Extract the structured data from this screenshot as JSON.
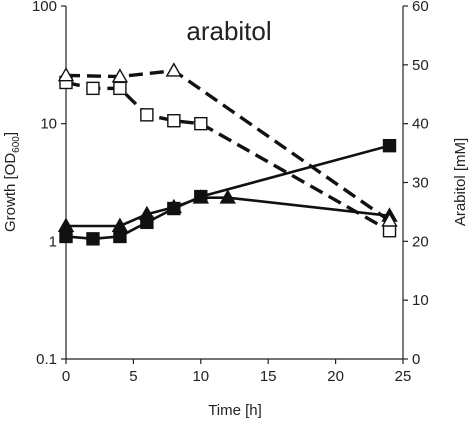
{
  "chart_data": {
    "type": "line",
    "title": "arabitol",
    "xlabel": "Time [h]",
    "ylabel_left": "Growth [OD600]",
    "ylabel_left_main": "Growth [OD",
    "ylabel_left_sub": "600",
    "ylabel_left_close": "]",
    "ylabel_right": "Arabitol [mM]",
    "xlim": [
      0,
      25
    ],
    "x_ticks": [
      "0",
      "5",
      "10",
      "15",
      "20",
      "25"
    ],
    "y_left_scale": "log",
    "y_left_lim": [
      0.1,
      100
    ],
    "y_left_ticks": [
      "0.1",
      "1",
      "10",
      "100"
    ],
    "y_right_lim": [
      0,
      60
    ],
    "y_right_ticks": [
      "0",
      "10",
      "20",
      "30",
      "40",
      "50",
      "60"
    ],
    "grid": false,
    "legend": "none",
    "series": [
      {
        "marker": "filled-square",
        "line": "solid",
        "axis": "left",
        "x": [
          0,
          2,
          4,
          6,
          8,
          10,
          24
        ],
        "y": [
          1.1,
          1.05,
          1.1,
          1.45,
          1.9,
          2.4,
          6.5
        ]
      },
      {
        "marker": "filled-triangle",
        "line": "solid",
        "axis": "left",
        "x": [
          0,
          4,
          6,
          8,
          10,
          12,
          24
        ],
        "y": [
          1.35,
          1.35,
          1.7,
          1.95,
          2.35,
          2.35,
          1.65
        ]
      },
      {
        "marker": "open-square",
        "line": "dashed",
        "axis": "right",
        "x": [
          0,
          2,
          4,
          6,
          8,
          10,
          24
        ],
        "y": [
          47,
          46,
          46,
          41.5,
          40.5,
          40,
          21.8
        ]
      },
      {
        "marker": "open-triangle",
        "line": "dashed",
        "axis": "right",
        "x": [
          0,
          4,
          8,
          24
        ],
        "y": [
          48.2,
          48,
          49,
          23.5
        ]
      }
    ]
  }
}
